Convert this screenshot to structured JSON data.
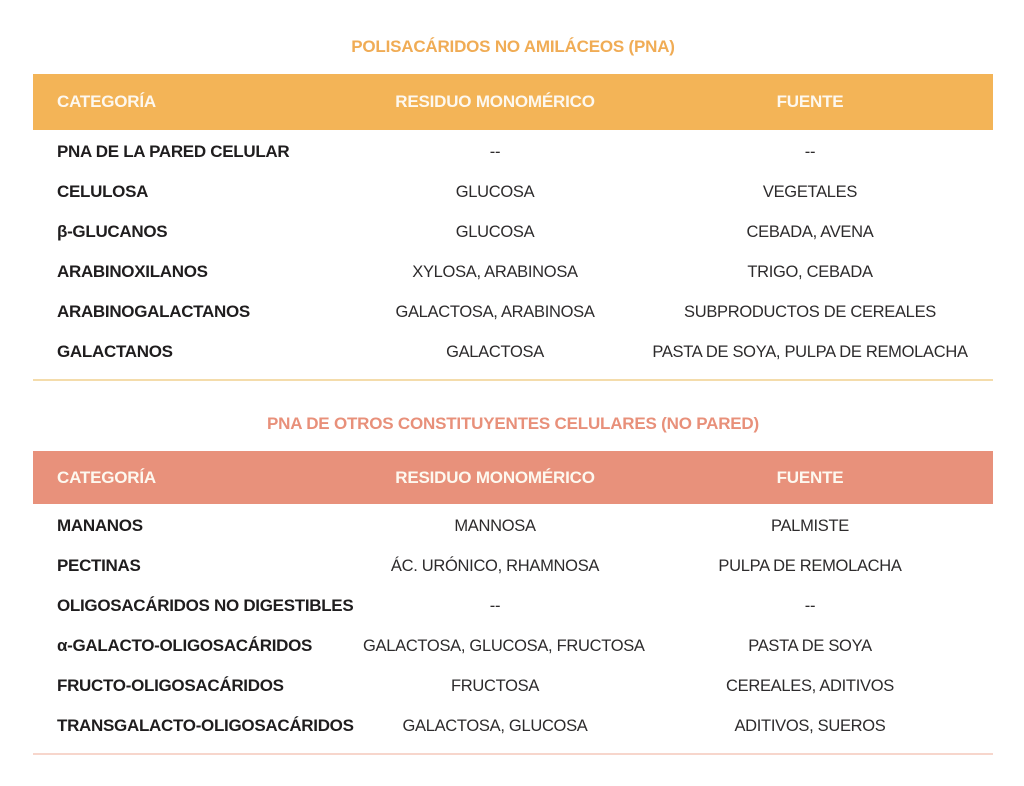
{
  "section1": {
    "title": "POLISACÁRIDOS NO AMILÁCEOS (PNA)",
    "accent_color": "#f3b457",
    "divider_color": "#f4dcab",
    "header_text_color": "#ffffff",
    "columns": [
      "CATEGORÍA",
      "RESIDUO MONOMÉRICO",
      "FUENTE"
    ],
    "rows": [
      {
        "categoria": "PNA DE LA PARED CELULAR",
        "residuo": "--",
        "fuente": "--"
      },
      {
        "categoria": "CELULOSA",
        "residuo": "GLUCOSA",
        "fuente": "VEGETALES"
      },
      {
        "categoria": "β-GLUCANOS",
        "residuo": "GLUCOSA",
        "fuente": "CEBADA, AVENA"
      },
      {
        "categoria": "ARABINOXILANOS",
        "residuo": "XYLOSA, ARABINOSA",
        "fuente": "TRIGO, CEBADA"
      },
      {
        "categoria": "ARABINOGALACTANOS",
        "residuo": "GALACTOSA, ARABINOSA",
        "fuente": "SUBPRODUCTOS DE CEREALES"
      },
      {
        "categoria": "GALACTANOS",
        "residuo": "GALACTOSA",
        "fuente": "PASTA DE SOYA, PULPA DE REMOLACHA"
      }
    ]
  },
  "section2": {
    "title": "PNA DE OTROS CONSTITUYENTES CELULARES (NO PARED)",
    "accent_color": "#e8917b",
    "divider_color": "#f7d6cc",
    "header_text_color": "#ffffff",
    "columns": [
      "CATEGORÍA",
      "RESIDUO MONOMÉRICO",
      "FUENTE"
    ],
    "rows": [
      {
        "categoria": "MANANOS",
        "residuo": "MANNOSA",
        "fuente": "PALMISTE"
      },
      {
        "categoria": "PECTINAS",
        "residuo": "ÁC. URÓNICO, RHAMNOSA",
        "fuente": "PULPA DE REMOLACHA"
      },
      {
        "categoria": "OLIGOSACÁRIDOS NO DIGESTIBLES",
        "residuo": "--",
        "fuente": "--"
      },
      {
        "categoria": "α-GALACTO-OLIGOSACÁRIDOS",
        "residuo": "GALACTOSA, GLUCOSA, FRUCTOSA",
        "fuente": "PASTA DE SOYA"
      },
      {
        "categoria": "FRUCTO-OLIGOSACÁRIDOS",
        "residuo": "FRUCTOSA",
        "fuente": "CEREALES, ADITIVOS"
      },
      {
        "categoria": "TRANSGALACTO-OLIGOSACÁRIDOS",
        "residuo": "GALACTOSA, GLUCOSA",
        "fuente": "ADITIVOS, SUEROS"
      }
    ]
  }
}
